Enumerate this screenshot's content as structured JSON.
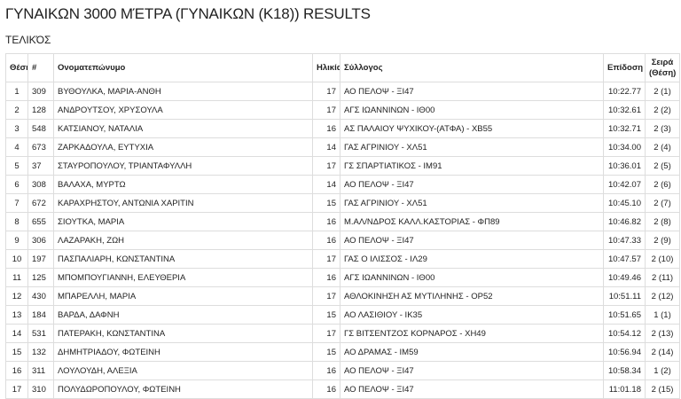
{
  "header": {
    "title": "ΓΥΝΑΙΚΩΝ 3000 ΜΈΤΡΑ (ΓΥΝΑΙΚΩΝ (Κ18)) RESULTS",
    "subtitle": "ΤΕΛΙΚΌΣ"
  },
  "table": {
    "columns": [
      "Θέση",
      "#",
      "Ονοματεπώνυμο",
      "Ηλικία",
      "Σύλλογος",
      "Επίδοση",
      "Σειρά (Θέση)"
    ],
    "rows": [
      [
        "1",
        "309",
        "ΒΥΘΟΥΛΚΑ, ΜΑΡΙΑ-ΑΝΘΗ",
        "17",
        "ΑΟ ΠΕΛΟΨ - ΞΙ47",
        "10:22.77",
        "2 (1)"
      ],
      [
        "2",
        "128",
        "ΑΝΔΡΟΥΤΣΟΥ, ΧΡΥΣΟΥΛΑ",
        "17",
        "ΑΓΣ ΙΩΑΝΝΙΝΩΝ - ΙΘ00",
        "10:32.61",
        "2 (2)"
      ],
      [
        "3",
        "548",
        "ΚΑΤΣΙΑΝΟΥ, ΝΑΤΑΛΙΑ",
        "16",
        "ΑΣ ΠΑΛΑΙΟΥ ΨΥΧΙΚΟΥ-(ΑΤΦΑ) - ΧΒ55",
        "10:32.71",
        "2 (3)"
      ],
      [
        "4",
        "673",
        "ΖΑΡΚΑΔΟΥΛΑ, ΕΥΤΥΧΙΑ",
        "14",
        "ΓΑΣ ΑΓΡΙΝΙΟΥ - ΧΛ51",
        "10:34.00",
        "2 (4)"
      ],
      [
        "5",
        "37",
        "ΣΤΑΥΡΟΠΟΥΛΟΥ, ΤΡΙΑΝΤΑΦΥΛΛΗ",
        "17",
        "ΓΣ ΣΠΑΡΤΙΑΤΙΚΟΣ - ΙΜ91",
        "10:36.01",
        "2 (5)"
      ],
      [
        "6",
        "308",
        "ΒΑΛΑΧΑ, ΜΥΡΤΩ",
        "14",
        "ΑΟ ΠΕΛΟΨ - ΞΙ47",
        "10:42.07",
        "2 (6)"
      ],
      [
        "7",
        "672",
        "ΚΑΡΑΧΡΗΣΤΟΥ, ΑΝΤΩΝΙΑ ΧΑΡΙΤΙΝ",
        "15",
        "ΓΑΣ ΑΓΡΙΝΙΟΥ - ΧΛ51",
        "10:45.10",
        "2 (7)"
      ],
      [
        "8",
        "655",
        "ΣΙΟΥΤΚΑ, ΜΑΡΙΑ",
        "16",
        "Μ.ΑΛ/ΝΔΡΟΣ ΚΑΛΛ.ΚΑΣΤΟΡΙΑΣ - ΦΠ89",
        "10:46.82",
        "2 (8)"
      ],
      [
        "9",
        "306",
        "ΛΑΖΑΡΑΚΗ, ΖΩΗ",
        "16",
        "ΑΟ ΠΕΛΟΨ - ΞΙ47",
        "10:47.33",
        "2 (9)"
      ],
      [
        "10",
        "197",
        "ΠΑΣΠΑΛΙΑΡΗ, ΚΩΝΣΤΑΝΤΙΝΑ",
        "17",
        "ΓΑΣ Ο ΙΛΙΣΣΟΣ - ΙΛ29",
        "10:47.57",
        "2 (10)"
      ],
      [
        "11",
        "125",
        "ΜΠΟΜΠΟΥΓΙΑΝΝΗ, ΕΛΕΥΘΕΡΙΑ",
        "16",
        "ΑΓΣ ΙΩΑΝΝΙΝΩΝ - ΙΘ00",
        "10:49.46",
        "2 (11)"
      ],
      [
        "12",
        "430",
        "ΜΠΑΡΕΛΛΗ, ΜΑΡΙΑ",
        "17",
        "ΑΘΛΟΚΙΝΗΣΗ ΑΣ ΜΥΤΙΛΗΝΗΣ - ΟΡ52",
        "10:51.11",
        "2 (12)"
      ],
      [
        "13",
        "184",
        "ΒΑΡΔΑ, ΔΑΦΝΗ",
        "15",
        "ΑΟ ΛΑΣΙΘΙΟΥ - ΙΚ35",
        "10:51.65",
        "1 (1)"
      ],
      [
        "14",
        "531",
        "ΠΑΤΕΡΑΚΗ, ΚΩΝΣΤΑΝΤΙΝΑ",
        "17",
        "ΓΣ ΒΙΤΣΕΝΤΖΟΣ ΚΟΡΝΑΡΟΣ - ΧΗ49",
        "10:54.12",
        "2 (13)"
      ],
      [
        "15",
        "132",
        "ΔΗΜΗΤΡΙΑΔΟΥ, ΦΩΤΕΙΝΗ",
        "15",
        "ΑΟ ΔΡΑΜΑΣ - ΙΜ59",
        "10:56.94",
        "2 (14)"
      ],
      [
        "16",
        "311",
        "ΛΟΥΛΟΥΔΗ, ΑΛΕΞΙΑ",
        "16",
        "ΑΟ ΠΕΛΟΨ - ΞΙ47",
        "10:58.34",
        "1 (2)"
      ],
      [
        "17",
        "310",
        "ΠΟΛΥΔΩΡΟΠΟΥΛΟΥ, ΦΩΤΕΙΝΗ",
        "16",
        "ΑΟ ΠΕΛΟΨ - ΞΙ47",
        "11:01.18",
        "2 (15)"
      ]
    ]
  }
}
